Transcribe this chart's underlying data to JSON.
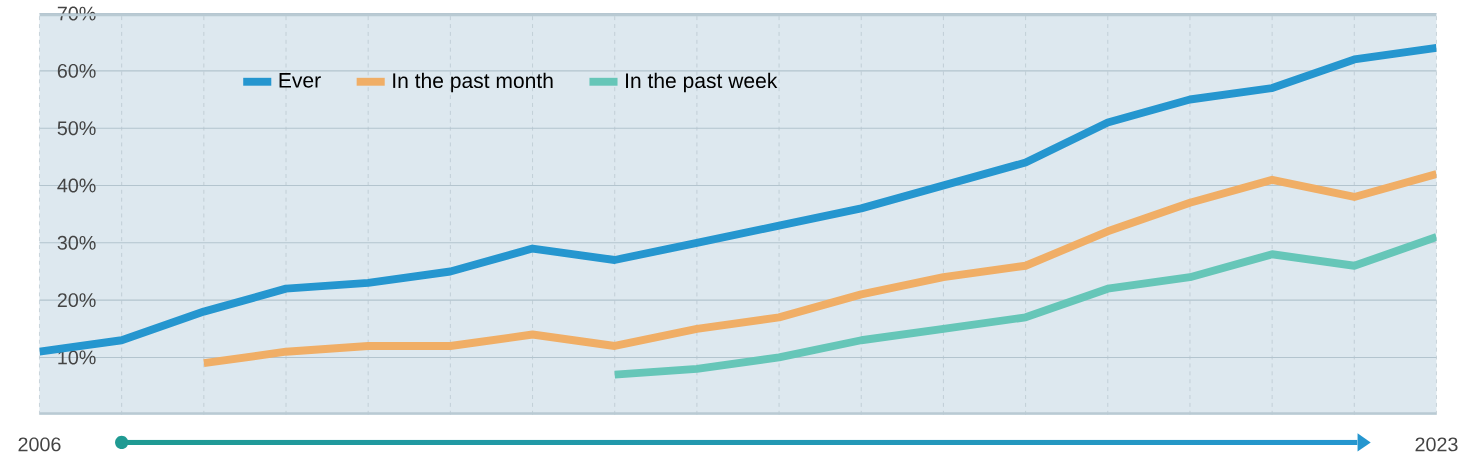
{
  "chart_data": {
    "type": "line",
    "x": [
      2006,
      2007,
      2008,
      2009,
      2010,
      2011,
      2012,
      2013,
      2014,
      2015,
      2016,
      2017,
      2018,
      2019,
      2020,
      2021,
      2022,
      2023
    ],
    "series": [
      {
        "name": "Ever",
        "color": "#2596cf",
        "values": [
          11,
          13,
          18,
          22,
          23,
          25,
          29,
          27,
          30,
          33,
          36,
          40,
          44,
          51,
          55,
          57,
          62,
          64
        ]
      },
      {
        "name": "In the past month",
        "color": "#f0ae66",
        "values": [
          null,
          null,
          9,
          11,
          12,
          12,
          14,
          12,
          15,
          17,
          21,
          24,
          26,
          32,
          37,
          41,
          38,
          42
        ]
      },
      {
        "name": "In the past week",
        "color": "#66c6b8",
        "values": [
          null,
          null,
          null,
          null,
          null,
          null,
          null,
          7,
          8,
          10,
          13,
          15,
          17,
          22,
          24,
          28,
          26,
          31
        ]
      }
    ],
    "xlim": [
      2006,
      2023
    ],
    "xticks": [
      2006,
      {
        "value": 2007,
        "label": null
      },
      {
        "value": 2008,
        "label": null
      },
      {
        "value": 2009,
        "label": null
      },
      {
        "value": 2010,
        "label": null
      },
      {
        "value": 2011,
        "label": null
      },
      {
        "value": 2012,
        "label": null
      },
      {
        "value": 2013,
        "label": null
      },
      {
        "value": 2014,
        "label": null
      },
      {
        "value": 2015,
        "label": null
      },
      {
        "value": 2016,
        "label": null
      },
      {
        "value": 2017,
        "label": null
      },
      {
        "value": 2018,
        "label": null
      },
      {
        "value": 2019,
        "label": null
      },
      {
        "value": 2020,
        "label": null
      },
      {
        "value": 2021,
        "label": null
      },
      {
        "value": 2022,
        "label": null
      },
      2023
    ],
    "ylim": [
      0,
      70
    ],
    "yticks": [
      {
        "value": 10,
        "label": "10%"
      },
      {
        "value": 20,
        "label": "20%"
      },
      {
        "value": 30,
        "label": "30%"
      },
      {
        "value": 40,
        "label": "40%"
      },
      {
        "value": 50,
        "label": "50%"
      },
      {
        "value": 60,
        "label": "60%"
      },
      {
        "value": 70,
        "label": "70%"
      }
    ],
    "grid": true,
    "legend": "top left",
    "marker": "none",
    "line_style": "solid"
  }
}
